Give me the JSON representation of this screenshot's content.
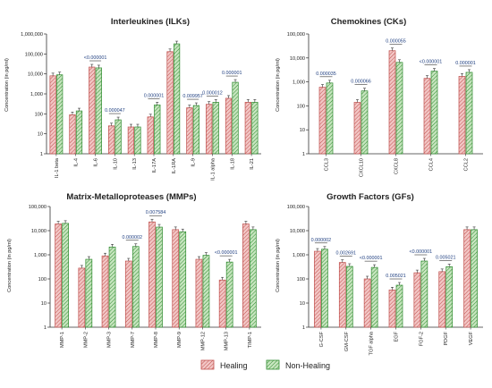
{
  "colors": {
    "healing_stroke": "#c0504d",
    "healing_fill": "#f2c6c5",
    "nonhealing_stroke": "#2e8b2e",
    "nonhealing_fill": "#c7e5bf",
    "pvalue_text": "#1f3f80"
  },
  "legend": {
    "healing": "Healing",
    "nonhealing": "Non-Healing"
  },
  "chart_data": [
    {
      "type": "bar",
      "title": "Interleukines (ILKs)",
      "ylabel": "Concentration (in pg/ml)",
      "yscale": "log",
      "ylim": [
        1,
        1000000
      ],
      "yticks": [
        "1",
        "10",
        "100",
        "1,000",
        "10,000",
        "100,000",
        "1,000,000"
      ],
      "categories": [
        "IL-1 beta",
        "IL-4",
        "IL-6",
        "IL-10",
        "IL-13",
        "IL-17A",
        "IL-1RA",
        "IL-9",
        "IL-1 alpha",
        "IL-18",
        "IL-21"
      ],
      "series": [
        {
          "name": "Healing",
          "values": [
            8000,
            90,
            22000,
            25,
            22,
            70,
            130000,
            200,
            300,
            600,
            380
          ]
        },
        {
          "name": "Non-Healing",
          "values": [
            9000,
            140,
            20000,
            50,
            22,
            280,
            320000,
            260,
            380,
            3800,
            380
          ]
        }
      ],
      "annotations": [
        {
          "text": "<0.000001",
          "category": "IL-6"
        },
        {
          "text": "0.000047",
          "category": "IL-10"
        },
        {
          "text": "0.000001",
          "category": "IL-17A"
        },
        {
          "text": "0.009957",
          "category": "IL-9"
        },
        {
          "text": "0.000012",
          "category": "IL-1 alpha"
        },
        {
          "text": "0.000001",
          "category": "IL-18"
        }
      ]
    },
    {
      "type": "bar",
      "title": "Chemokines (CKs)",
      "ylabel": "Concentration (in pg/ml)",
      "yscale": "log",
      "ylim": [
        1,
        100000
      ],
      "yticks": [
        "1",
        "10",
        "100",
        "1,000",
        "10,000",
        "100,000"
      ],
      "categories": [
        "CCL3",
        "CXCL10",
        "CXCL8",
        "CCL4",
        "CCL2"
      ],
      "series": [
        {
          "name": "Healing",
          "values": [
            600,
            140,
            20000,
            1400,
            1700
          ]
        },
        {
          "name": "Non-Healing",
          "values": [
            900,
            420,
            6500,
            2800,
            2500
          ]
        }
      ],
      "annotations": [
        {
          "text": "0.000035",
          "category": "CCL3"
        },
        {
          "text": "0.000066",
          "category": "CXCL10"
        },
        {
          "text": "0.000055",
          "category": "CXCL8"
        },
        {
          "text": "<0.000001",
          "category": "CCL4"
        },
        {
          "text": "0.000001",
          "category": "CCL2"
        }
      ]
    },
    {
      "type": "bar",
      "title": "Matrix-Metalloproteases (MMPs)",
      "ylabel": "Concentration (in pg/ml)",
      "yscale": "log",
      "ylim": [
        1,
        100000
      ],
      "yticks": [
        "1",
        "10",
        "100",
        "1,000",
        "10,000",
        "100,000"
      ],
      "categories": [
        "MMP-1",
        "MMP-2",
        "MMP-3",
        "MMP-7",
        "MMP-8",
        "MMP-9",
        "MMP-12",
        "MMP-13",
        "TIMP-1"
      ],
      "series": [
        {
          "name": "Healing",
          "values": [
            19000,
            280,
            900,
            550,
            23000,
            11000,
            650,
            90,
            19000
          ]
        },
        {
          "name": "Non-Healing",
          "values": [
            20000,
            650,
            2100,
            2200,
            14000,
            9000,
            950,
            500,
            11000
          ]
        }
      ],
      "annotations": [
        {
          "text": "0.000002",
          "category": "MMP-7"
        },
        {
          "text": "0.007584",
          "category": "MMP-8"
        },
        {
          "text": "<0.000001",
          "category": "MMP-13"
        }
      ]
    },
    {
      "type": "bar",
      "title": "Growth Factors (GFs)",
      "ylabel": "Concentration (in pg/ml)",
      "yscale": "log",
      "ylim": [
        1,
        100000
      ],
      "yticks": [
        "1",
        "10",
        "100",
        "1,000",
        "10,000",
        "100,000"
      ],
      "categories": [
        "G-CSF",
        "GM-CSF",
        "TGF alpha",
        "EGF",
        "FGF-2",
        "PDGF",
        "VEGF"
      ],
      "series": [
        {
          "name": "Healing",
          "values": [
            1400,
            480,
            100,
            35,
            180,
            200,
            11000
          ]
        },
        {
          "name": "Non-Healing",
          "values": [
            1700,
            330,
            300,
            55,
            550,
            320,
            11000
          ]
        }
      ],
      "annotations": [
        {
          "text": "0.000002",
          "category": "G-CSF"
        },
        {
          "text": "0.002691",
          "category": "GM-CSF"
        },
        {
          "text": "<0.000001",
          "category": "TGF alpha"
        },
        {
          "text": "0.005021",
          "category": "EGF"
        },
        {
          "text": "<0.000001",
          "category": "FGF-2"
        },
        {
          "text": "0.005021",
          "category": "PDGF"
        }
      ]
    }
  ]
}
